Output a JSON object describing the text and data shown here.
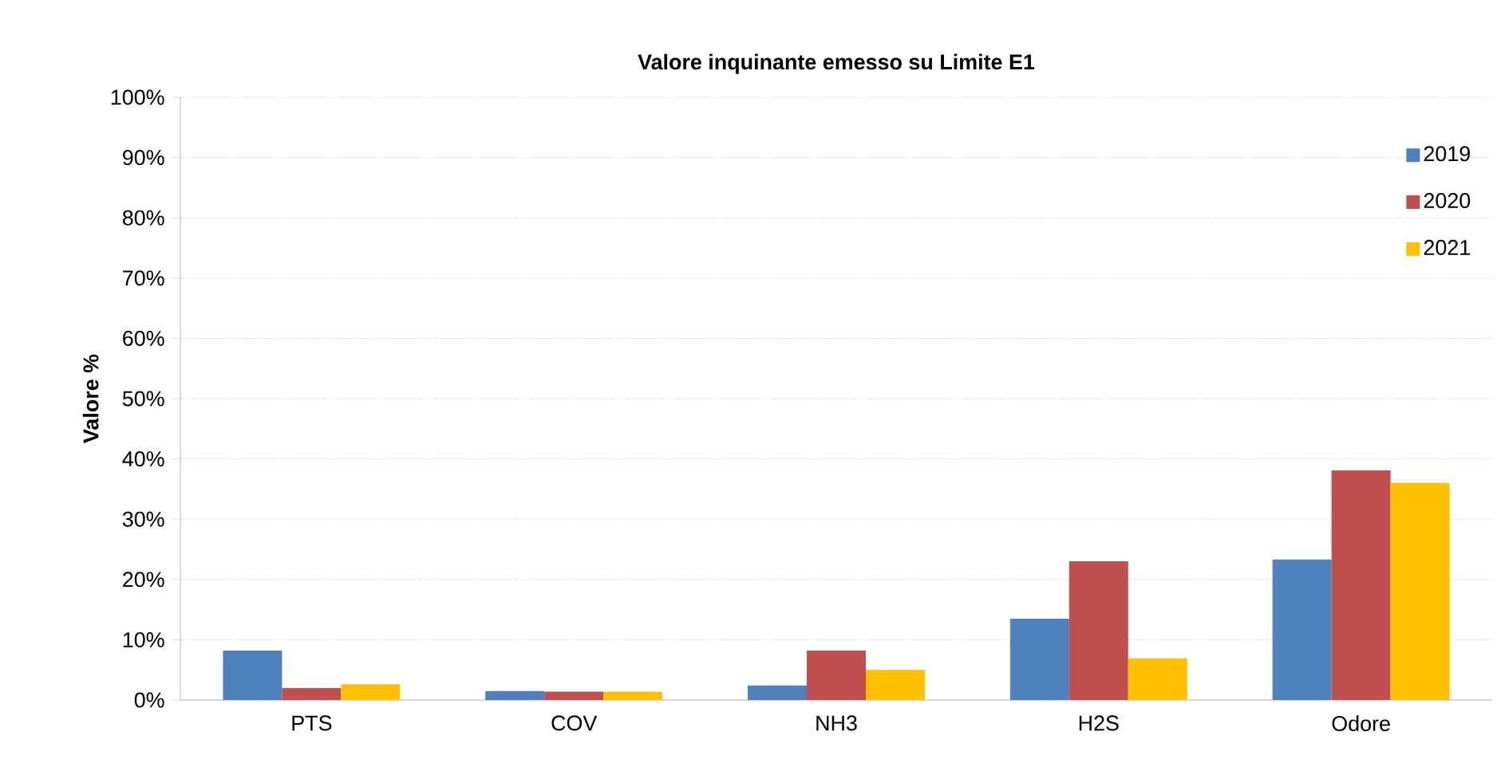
{
  "chart_data": {
    "type": "bar",
    "title": "Valore inquinante emesso su Limite E1",
    "ylabel": "Valore %",
    "categories": [
      "PTS",
      "COV",
      "NH3",
      "H2S",
      "Odore"
    ],
    "series": [
      {
        "name": "2019",
        "color": "#4f81bd",
        "values": [
          8.2,
          1.5,
          2.4,
          13.5,
          23.3
        ]
      },
      {
        "name": "2020",
        "color": "#c0504d",
        "values": [
          2.0,
          1.4,
          8.2,
          23.0,
          38.1
        ]
      },
      {
        "name": "2021",
        "color": "#ffc000",
        "values": [
          2.6,
          1.4,
          5.0,
          6.9,
          36.0
        ]
      }
    ],
    "ylim": [
      0,
      100
    ],
    "yticks": [
      {
        "value": 0,
        "label": "0%"
      },
      {
        "value": 10,
        "label": "10%"
      },
      {
        "value": 20,
        "label": "20%"
      },
      {
        "value": 30,
        "label": "30%"
      },
      {
        "value": 40,
        "label": "40%"
      },
      {
        "value": 50,
        "label": "50%"
      },
      {
        "value": 60,
        "label": "60%"
      },
      {
        "value": 70,
        "label": "70%"
      },
      {
        "value": 80,
        "label": "80%"
      },
      {
        "value": 90,
        "label": "90%"
      },
      {
        "value": 100,
        "label": "100%"
      }
    ],
    "grid": "y",
    "legend": "right"
  }
}
